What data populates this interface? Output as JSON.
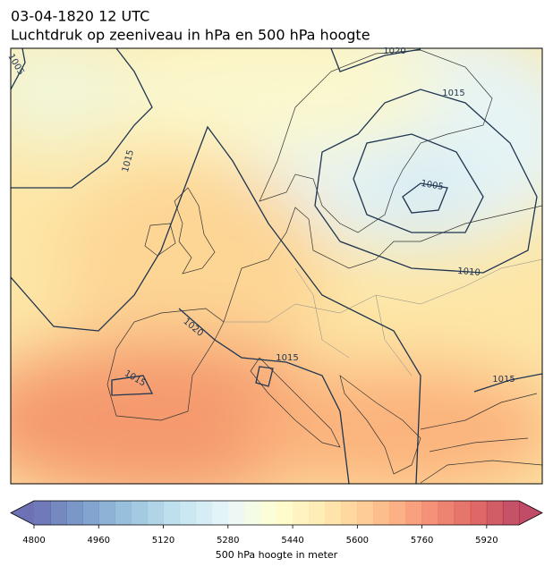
{
  "header": {
    "title": "03-04-1820 12 UTC",
    "subtitle": "Luchtdruk op zeeniveau in hPa en 500 hPa hoogte"
  },
  "map": {
    "isobar_labels": [
      {
        "text": "1005"
      },
      {
        "text": "1020"
      },
      {
        "text": "1015"
      },
      {
        "text": "1005"
      },
      {
        "text": "1010"
      },
      {
        "text": "1015"
      },
      {
        "text": "1020"
      },
      {
        "text": "1015"
      },
      {
        "text": "1015"
      },
      {
        "text": "1015"
      }
    ]
  },
  "colorbar": {
    "label": "500 hPa hoogte in meter",
    "cmap": "RdYlBu_r",
    "clim": [
      4800,
      6000
    ],
    "level_step": 40,
    "ticks": [
      4800,
      4960,
      5120,
      5280,
      5440,
      5600,
      5760,
      5920
    ]
  }
}
